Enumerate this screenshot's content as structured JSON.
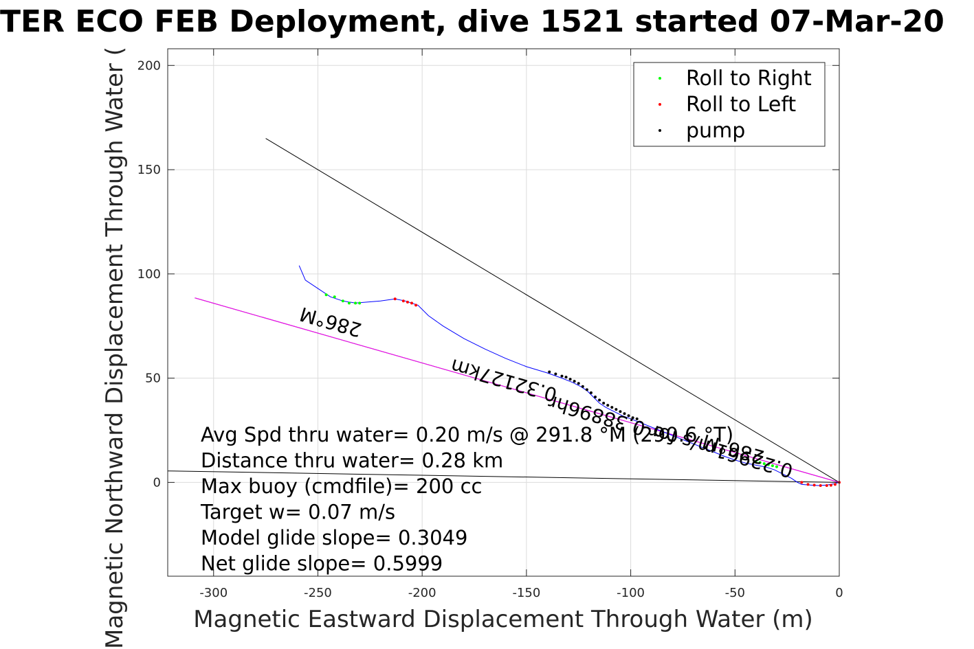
{
  "chart_data": {
    "type": "scatter",
    "title": "TER ECO FEB Deployment, dive 1521 started 07-Mar-20",
    "xlabel": "Magnetic Eastward Displacement Through Water (m)",
    "ylabel": "Magnetic Northward Displacement Through Water (",
    "xlim": [
      -322,
      0
    ],
    "ylim": [
      -45,
      208
    ],
    "xticks": [
      "-300",
      "-250",
      "-200",
      "-150",
      "-100",
      "-50",
      "0"
    ],
    "yticks": [
      "0",
      "50",
      "100",
      "150",
      "200"
    ],
    "xtick_values": [
      -300,
      -250,
      -200,
      -150,
      -100,
      -50,
      0
    ],
    "ytick_values": [
      0,
      50,
      100,
      150,
      200
    ],
    "grid": true,
    "legend_position": "top-right",
    "legend": [
      {
        "label": "Roll to Right",
        "color": "#00ff00"
      },
      {
        "label": "Roll to Left",
        "color": "#ff0000"
      },
      {
        "label": "pump",
        "color": "#000000"
      }
    ],
    "series": [
      {
        "name": "track",
        "style": "line",
        "color": "#0000ff",
        "x": [
          -259,
          -256,
          -250,
          -244,
          -238,
          -232,
          -226,
          -220,
          -213,
          -208,
          -202,
          -197,
          -190,
          -180,
          -170,
          -160,
          -150,
          -140,
          -133,
          -128,
          -124,
          -121,
          -118,
          -115,
          -112,
          -108,
          -104,
          -100,
          -95,
          -90,
          -85,
          -80,
          -75,
          -70,
          -65,
          -60,
          -55,
          -50,
          -45,
          -40,
          -35,
          -31,
          -27,
          -23,
          -20,
          -18,
          -14,
          -10,
          -6,
          -3,
          0
        ],
        "y": [
          104,
          97,
          93,
          89,
          87,
          86,
          86.5,
          87,
          88,
          87,
          85,
          80,
          75,
          69,
          64,
          59.5,
          55.5,
          52.5,
          50,
          48,
          46,
          44,
          41,
          38,
          36,
          34,
          32,
          30.5,
          28.5,
          26.5,
          24.5,
          22.5,
          20.5,
          18.5,
          16.5,
          14.5,
          12.5,
          10.7,
          9.3,
          8.3,
          7.3,
          6,
          4,
          2,
          0,
          -1,
          -1.3,
          -1.5,
          -1.3,
          -0.8,
          0
        ]
      },
      {
        "name": "Roll to Right",
        "style": "points",
        "color": "#00ff00",
        "x": [
          -246,
          -242,
          -238,
          -235,
          -232,
          -230,
          -40,
          -38,
          -36,
          -34,
          -32,
          -30
        ],
        "y": [
          90,
          89,
          87,
          86,
          86,
          86,
          10,
          9.5,
          9,
          8.5,
          8,
          7.5
        ]
      },
      {
        "name": "Roll to Left",
        "style": "points",
        "color": "#ff0000",
        "x": [
          -213,
          -209,
          -207,
          -205,
          -203,
          -18,
          -15,
          -12,
          -9,
          -6,
          -4,
          -2,
          0
        ],
        "y": [
          88,
          87,
          86.5,
          86,
          85,
          0,
          -1,
          -1.3,
          -1.5,
          -1.5,
          -1.4,
          -1,
          0
        ]
      },
      {
        "name": "pump",
        "style": "points",
        "color": "#000000",
        "x": [
          -139,
          -136,
          -133,
          -131,
          -129,
          -127,
          -125,
          -123,
          -121,
          -119,
          -117,
          -115,
          -113,
          -111,
          -109,
          -107,
          -105,
          -103,
          -101,
          -99,
          -97
        ],
        "y": [
          53,
          52,
          51,
          50.5,
          49.5,
          48.5,
          47.5,
          46,
          44.5,
          43,
          41,
          39.5,
          38,
          37,
          36,
          35,
          34,
          33,
          32,
          31,
          30.5
        ]
      }
    ],
    "reference_lines": [
      {
        "x": [
          -275,
          0
        ],
        "y": [
          165,
          0
        ],
        "color": "#000000"
      },
      {
        "x": [
          -322,
          0
        ],
        "y": [
          5.5,
          0
        ],
        "color": "#000000"
      },
      {
        "x": [
          -309,
          0
        ],
        "y": [
          88.5,
          0
        ],
        "color": "#000000"
      },
      {
        "x": [
          -309,
          0
        ],
        "y": [
          88.5,
          0
        ],
        "color": "#ff00ff"
      }
    ],
    "annotations": [
      {
        "text": "286°M",
        "x": -243,
        "y": 80,
        "rotate": 196
      },
      {
        "text": "0.32127km",
        "x": -160,
        "y": 52,
        "rotate": 196
      },
      {
        "text": "286°M",
        "x": -50,
        "y": 19,
        "rotate": 196
      },
      {
        "text": "0.22961m/s for 0.38896hr",
        "x": -80,
        "y": 25,
        "rotate": 196
      }
    ],
    "stats": [
      "Avg Spd thru water=  0.20 m/s @ 291.8 °M (290.6 °T)",
      "Distance thru water=  0.28 km",
      "Max buoy (cmdfile)= 200 cc",
      "Target w= 0.07 m/s",
      "Model glide slope= 0.3049",
      "Net glide slope= 0.5999"
    ]
  }
}
